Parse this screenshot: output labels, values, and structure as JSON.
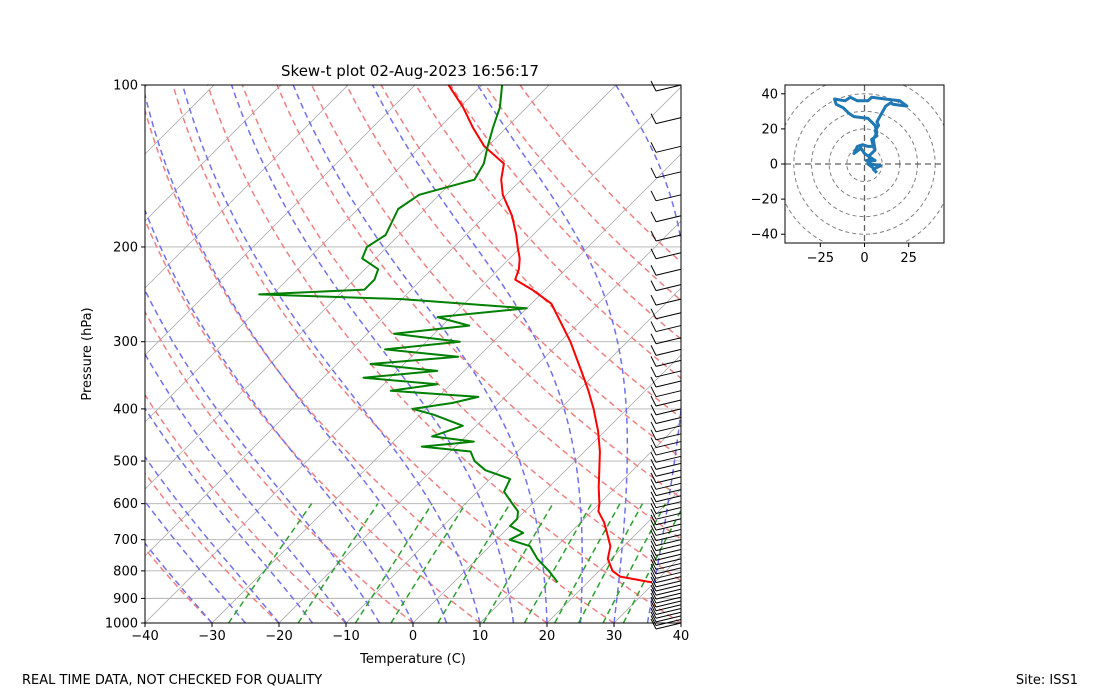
{
  "chart_data": [
    {
      "type": "skew-t",
      "title": "Skew-t plot 02-Aug-2023 16:56:17",
      "xlabel": "Temperature (C)",
      "ylabel": "Pressure (hPa)",
      "xlim": [
        -40,
        40
      ],
      "ylim": [
        1000,
        100
      ],
      "x_ticks": [
        "−40",
        "−30",
        "−20",
        "−10",
        "0",
        "10",
        "20",
        "30",
        "40"
      ],
      "y_ticks": [
        "100",
        "200",
        "300",
        "400",
        "500",
        "600",
        "700",
        "800",
        "900",
        "1000"
      ],
      "series": [
        {
          "name": "Temperature",
          "color": "#ff0000",
          "points": [
            [
              840,
              29.5
            ],
            [
              820,
              24
            ],
            [
              800,
              22
            ],
            [
              760,
              19.5
            ],
            [
              720,
              18
            ],
            [
              680,
              15.5
            ],
            [
              650,
              13.5
            ],
            [
              620,
              11
            ],
            [
              600,
              10
            ],
            [
              560,
              7.5
            ],
            [
              520,
              5
            ],
            [
              480,
              2.3
            ],
            [
              440,
              -1
            ],
            [
              400,
              -5
            ],
            [
              370,
              -8.5
            ],
            [
              340,
              -12.5
            ],
            [
              300,
              -18.5
            ],
            [
              270,
              -24
            ],
            [
              255,
              -27
            ],
            [
              240,
              -32
            ],
            [
              230,
              -36
            ],
            [
              220,
              -37
            ],
            [
              210,
              -38.5
            ],
            [
              200,
              -40.5
            ],
            [
              190,
              -42.5
            ],
            [
              175,
              -46
            ],
            [
              160,
              -50.5
            ],
            [
              150,
              -53
            ],
            [
              140,
              -55
            ],
            [
              130,
              -60.5
            ],
            [
              120,
              -65
            ],
            [
              110,
              -69.5
            ],
            [
              100,
              -75
            ]
          ]
        },
        {
          "name": "Dewpoint",
          "color": "#008000",
          "points": [
            [
              840,
              15.5
            ],
            [
              800,
              12.5
            ],
            [
              760,
              9
            ],
            [
              720,
              6
            ],
            [
              700,
              2
            ],
            [
              680,
              3
            ],
            [
              660,
              0
            ],
            [
              640,
              0
            ],
            [
              620,
              -1
            ],
            [
              600,
              -3
            ],
            [
              570,
              -6
            ],
            [
              540,
              -7
            ],
            [
              520,
              -12
            ],
            [
              500,
              -15
            ],
            [
              480,
              -17
            ],
            [
              470,
              -25
            ],
            [
              460,
              -18
            ],
            [
              450,
              -25
            ],
            [
              430,
              -22
            ],
            [
              410,
              -28
            ],
            [
              400,
              -32
            ],
            [
              390,
              -27
            ],
            [
              380,
              -24
            ],
            [
              370,
              -38
            ],
            [
              360,
              -32
            ],
            [
              350,
              -44
            ],
            [
              340,
              -34
            ],
            [
              330,
              -45
            ],
            [
              320,
              -33
            ],
            [
              310,
              -45
            ],
            [
              300,
              -35
            ],
            [
              290,
              -46
            ],
            [
              280,
              -36
            ],
            [
              270,
              -42
            ],
            [
              260,
              -30
            ],
            [
              250,
              -50
            ],
            [
              245,
              -72
            ],
            [
              240,
              -57
            ],
            [
              230,
              -57
            ],
            [
              220,
              -58
            ],
            [
              210,
              -62
            ],
            [
              200,
              -63
            ],
            [
              190,
              -62
            ],
            [
              170,
              -64
            ],
            [
              160,
              -63
            ],
            [
              150,
              -57
            ],
            [
              140,
              -58
            ],
            [
              130,
              -60
            ],
            [
              120,
              -62
            ],
            [
              110,
              -64
            ],
            [
              100,
              -67
            ]
          ]
        }
      ],
      "reference_lines": {
        "isotherms": "gray solid",
        "dry_adiabats": "red dashed",
        "moist_adiabats": "blue dashed",
        "mixing_ratio_lines": "green dashed"
      },
      "wind_barbs": "shown along right edge (1000-100 hPa)"
    },
    {
      "type": "hodograph",
      "xlim": [
        -45,
        45
      ],
      "ylim": [
        -45,
        45
      ],
      "x_ticks": [
        "−25",
        "0",
        "25"
      ],
      "y_ticks": [
        "40",
        "20",
        "0",
        "−20",
        "−40"
      ],
      "ring_spacing": 10,
      "color": "#1f77b4",
      "points": [
        [
          7,
          -5
        ],
        [
          5,
          -3
        ],
        [
          9,
          -1
        ],
        [
          4,
          0
        ],
        [
          1,
          2
        ],
        [
          6,
          2
        ],
        [
          3,
          4
        ],
        [
          0,
          6
        ],
        [
          -2,
          9
        ],
        [
          -6,
          6
        ],
        [
          -4,
          10
        ],
        [
          -1,
          11
        ],
        [
          2,
          10
        ],
        [
          5,
          10
        ],
        [
          4,
          14
        ],
        [
          7,
          16
        ],
        [
          6,
          19
        ],
        [
          8,
          22
        ],
        [
          7,
          24
        ],
        [
          12,
          33
        ],
        [
          15,
          35
        ],
        [
          16,
          34
        ],
        [
          24,
          33
        ],
        [
          20,
          36
        ],
        [
          4,
          38
        ],
        [
          2,
          36
        ],
        [
          -4,
          36
        ],
        [
          -8,
          38
        ],
        [
          -11,
          36
        ],
        [
          -17,
          37
        ],
        [
          -16,
          34
        ],
        [
          -12,
          32
        ],
        [
          -9,
          29
        ],
        [
          -6,
          27
        ],
        [
          2,
          26
        ],
        [
          6,
          22
        ],
        [
          7,
          18
        ],
        [
          5,
          14
        ],
        [
          6,
          8
        ],
        [
          3,
          5
        ],
        [
          2,
          0
        ],
        [
          6,
          -3
        ]
      ]
    }
  ],
  "footer": {
    "left": "REAL TIME DATA, NOT CHECKED FOR QUALITY",
    "right": "Site: ISS1"
  },
  "colors": {
    "isotherm": "#b0b0b0",
    "dry_adiabat": "#f08080",
    "moist_adiabat": "#7070ee",
    "mixing_ratio": "#2ca02c",
    "hodo_line": "#1f77b4"
  }
}
